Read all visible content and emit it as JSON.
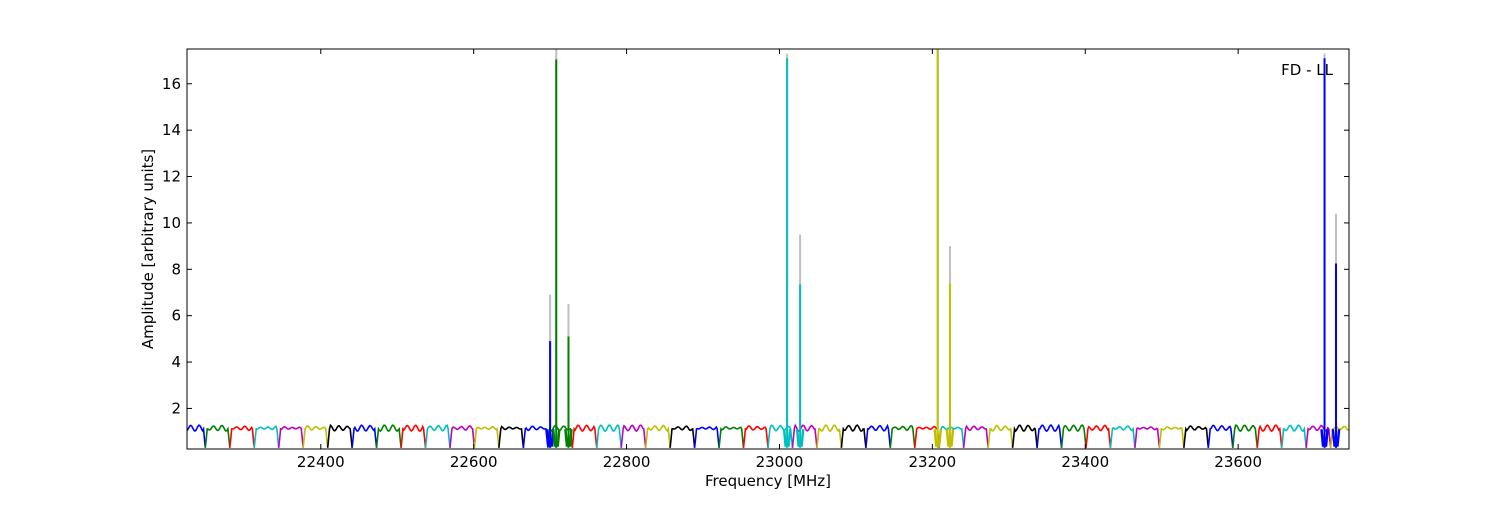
{
  "chart_data": {
    "type": "line",
    "title": "",
    "annotation": "FD - LL",
    "xlabel": "Frequency [MHz]",
    "ylabel": "Amplitude [arbitrary units]",
    "xlim": [
      22225,
      23745
    ],
    "ylim": [
      0.25,
      17.5
    ],
    "grid": false,
    "x_ticks": [
      22400,
      22600,
      22800,
      23000,
      23200,
      23400,
      23600
    ],
    "y_ticks": [
      2,
      4,
      6,
      8,
      10,
      12,
      14,
      16
    ],
    "baseline": {
      "description_units": "amplitude",
      "band_width_mhz": 32,
      "band_start_mhz": 22225,
      "colors_cycle": [
        "#0000ff",
        "#008000",
        "#ff0000",
        "#00bfbf",
        "#bf00bf",
        "#bfbf00",
        "#000000"
      ],
      "typical_level": 1.15,
      "edge_level": 0.3
    },
    "spikes": [
      {
        "x": 22700,
        "raw": 6.9,
        "value": 4.9,
        "color": "#0000ff"
      },
      {
        "x": 22708,
        "raw": 17.5,
        "value": 17.05,
        "color": "#008000"
      },
      {
        "x": 22724,
        "raw": 6.5,
        "value": 5.1,
        "color": "#008000"
      },
      {
        "x": 23010,
        "raw": 17.3,
        "value": 17.1,
        "color": "#00bfbf"
      },
      {
        "x": 23027,
        "raw": 9.5,
        "value": 7.35,
        "color": "#00bfbf"
      },
      {
        "x": 23207,
        "raw": 17.5,
        "value": 17.5,
        "color": "#bfbf00"
      },
      {
        "x": 23223,
        "raw": 9.0,
        "value": 7.4,
        "color": "#bfbf00"
      },
      {
        "x": 23713,
        "raw": 17.3,
        "value": 17.1,
        "color": "#0000ff"
      },
      {
        "x": 23728,
        "raw": 10.4,
        "value": 8.25,
        "color": "#0000ff"
      }
    ],
    "raw_spike_color": "#bfbfbf"
  }
}
